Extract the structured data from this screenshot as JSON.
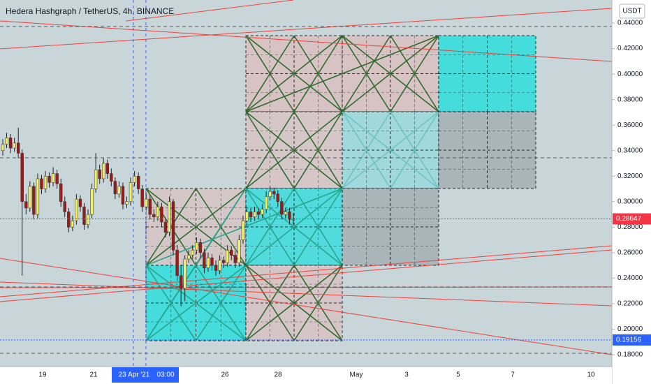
{
  "chart_data": {
    "type": "candlestick",
    "title": "Hedera Hashgraph / TetherUS, 4h, BINANCE",
    "currency": "USDT",
    "x_tick_labels": [
      "19",
      "21",
      "23 Apr '21",
      "03:00",
      "26",
      "28",
      "May",
      "3",
      "5",
      "7",
      "10"
    ],
    "colors": {
      "up": "#f0ef6e",
      "down": "#9b1b1b"
    },
    "open": [
      0.34,
      0.345,
      0.35,
      0.342,
      0.346,
      0.338,
      0.3,
      0.295,
      0.312,
      0.29,
      0.318,
      0.31,
      0.32,
      0.315,
      0.322,
      0.314,
      0.3,
      0.292,
      0.28,
      0.285,
      0.302,
      0.296,
      0.282,
      0.29,
      0.31,
      0.325,
      0.318,
      0.33,
      0.322,
      0.316,
      0.306,
      0.312,
      0.298,
      0.3,
      0.315,
      0.32,
      0.31,
      0.296,
      0.302,
      0.29,
      0.288,
      0.296,
      0.284,
      0.276,
      0.3,
      0.262,
      0.242,
      0.232,
      0.255,
      0.258,
      0.262,
      0.268,
      0.26,
      0.248,
      0.256,
      0.25,
      0.246,
      0.254,
      0.252,
      0.262,
      0.258,
      0.252,
      0.27,
      0.285,
      0.292,
      0.288,
      0.292,
      0.29,
      0.294,
      0.304,
      0.308,
      0.306,
      0.3,
      0.29,
      0.292,
      0.286
    ],
    "high": [
      0.349,
      0.354,
      0.353,
      0.35,
      0.358,
      0.341,
      0.306,
      0.316,
      0.315,
      0.322,
      0.321,
      0.324,
      0.323,
      0.327,
      0.325,
      0.318,
      0.304,
      0.295,
      0.289,
      0.306,
      0.305,
      0.299,
      0.294,
      0.314,
      0.338,
      0.329,
      0.334,
      0.333,
      0.326,
      0.319,
      0.316,
      0.315,
      0.304,
      0.319,
      0.324,
      0.323,
      0.313,
      0.306,
      0.305,
      0.294,
      0.3,
      0.299,
      0.287,
      0.304,
      0.302,
      0.266,
      0.25,
      0.258,
      0.262,
      0.266,
      0.272,
      0.271,
      0.263,
      0.26,
      0.259,
      0.254,
      0.258,
      0.257,
      0.266,
      0.265,
      0.261,
      0.274,
      0.289,
      0.296,
      0.295,
      0.296,
      0.295,
      0.298,
      0.308,
      0.312,
      0.311,
      0.309,
      0.303,
      0.295,
      0.295,
      0.291
    ],
    "low": [
      0.336,
      0.342,
      0.338,
      0.339,
      0.334,
      0.242,
      0.29,
      0.292,
      0.286,
      0.287,
      0.306,
      0.307,
      0.311,
      0.312,
      0.31,
      0.296,
      0.288,
      0.276,
      0.277,
      0.282,
      0.292,
      0.278,
      0.279,
      0.287,
      0.307,
      0.314,
      0.315,
      0.318,
      0.312,
      0.302,
      0.303,
      0.294,
      0.295,
      0.297,
      0.312,
      0.306,
      0.292,
      0.293,
      0.286,
      0.284,
      0.285,
      0.28,
      0.272,
      0.273,
      0.258,
      0.238,
      0.218,
      0.222,
      0.252,
      0.255,
      0.259,
      0.256,
      0.244,
      0.245,
      0.246,
      0.242,
      0.243,
      0.248,
      0.249,
      0.254,
      0.248,
      0.249,
      0.267,
      0.282,
      0.284,
      0.285,
      0.286,
      0.287,
      0.291,
      0.301,
      0.302,
      0.296,
      0.286,
      0.287,
      0.282,
      0.282
    ],
    "close": [
      0.345,
      0.35,
      0.342,
      0.346,
      0.338,
      0.3,
      0.295,
      0.312,
      0.29,
      0.318,
      0.31,
      0.32,
      0.315,
      0.322,
      0.314,
      0.3,
      0.292,
      0.28,
      0.285,
      0.302,
      0.296,
      0.282,
      0.29,
      0.31,
      0.325,
      0.318,
      0.33,
      0.322,
      0.316,
      0.306,
      0.312,
      0.298,
      0.3,
      0.315,
      0.32,
      0.31,
      0.296,
      0.302,
      0.29,
      0.288,
      0.296,
      0.284,
      0.276,
      0.3,
      0.262,
      0.242,
      0.232,
      0.255,
      0.258,
      0.262,
      0.268,
      0.26,
      0.248,
      0.256,
      0.25,
      0.246,
      0.254,
      0.252,
      0.262,
      0.258,
      0.252,
      0.27,
      0.285,
      0.292,
      0.288,
      0.292,
      0.29,
      0.294,
      0.304,
      0.308,
      0.306,
      0.3,
      0.29,
      0.292,
      0.286,
      0.28647
    ],
    "ylim": [
      0.1707,
      0.4581
    ],
    "yticks": [
      {
        "value": 0.44,
        "label": "0.44000"
      },
      {
        "value": 0.42,
        "label": "0.42000"
      },
      {
        "value": 0.4,
        "label": "0.40000"
      },
      {
        "value": 0.38,
        "label": "0.38000"
      },
      {
        "value": 0.36,
        "label": "0.36000"
      },
      {
        "value": 0.34,
        "label": "0.34000"
      },
      {
        "value": 0.32,
        "label": "0.32000"
      },
      {
        "value": 0.3,
        "label": "0.30000"
      },
      {
        "value": 0.28,
        "label": "0.28000"
      },
      {
        "value": 0.26,
        "label": "0.26000"
      },
      {
        "value": 0.24,
        "label": "0.24000"
      },
      {
        "value": 0.22,
        "label": "0.22000"
      },
      {
        "value": 0.2,
        "label": "0.20000"
      },
      {
        "value": 0.18,
        "label": "0.18000"
      }
    ],
    "price_labels": [
      {
        "value": 0.28647,
        "label": "0.28647",
        "color": "#f23645"
      },
      {
        "value": 0.19156,
        "label": "0.19156",
        "color": "#2962ff"
      }
    ]
  }
}
